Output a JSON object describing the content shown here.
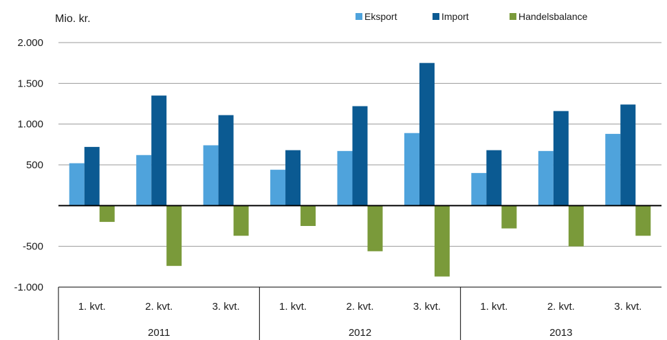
{
  "chart_data": {
    "type": "bar",
    "unit_label": "Mio. kr.",
    "ylim": [
      -1000,
      2000
    ],
    "yticks": [
      -1000,
      -500,
      0,
      500,
      1000,
      1500,
      2000
    ],
    "ytick_labels": [
      "-1.000",
      "-500",
      "",
      "500",
      "1.000",
      "1.500",
      "2.000"
    ],
    "categories": [
      "1. kvt.",
      "2. kvt.",
      "3. kvt.",
      "1. kvt.",
      "2. kvt.",
      "3. kvt.",
      "1. kvt.",
      "2. kvt.",
      "3. kvt."
    ],
    "groups": [
      {
        "label": "2011",
        "span": 3
      },
      {
        "label": "2012",
        "span": 3
      },
      {
        "label": "2013",
        "span": 3
      }
    ],
    "series": [
      {
        "name": "Eksport",
        "color": "#4fa3dc",
        "values": [
          520,
          620,
          740,
          440,
          670,
          890,
          400,
          670,
          880
        ]
      },
      {
        "name": "Import",
        "color": "#0b5a92",
        "values": [
          720,
          1350,
          1110,
          680,
          1220,
          1750,
          680,
          1160,
          1240
        ]
      },
      {
        "name": "Handelsbalance",
        "color": "#7a9a3a",
        "values": [
          -200,
          -740,
          -370,
          -250,
          -560,
          -870,
          -280,
          -500,
          -370
        ]
      }
    ],
    "grid": true,
    "legend_position": "top-right"
  }
}
